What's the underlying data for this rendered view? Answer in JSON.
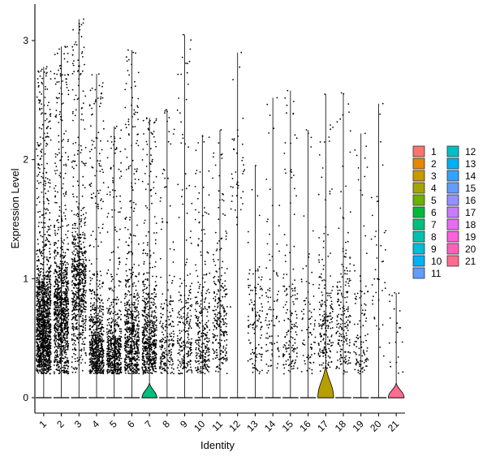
{
  "chart_data": {
    "type": "violin",
    "xlabel": "Identity",
    "ylabel": "Expression Level",
    "ylim": [
      -0.15,
      3.3
    ],
    "yticks": [
      0,
      1,
      2,
      3
    ],
    "grid": false,
    "legend_position": "right",
    "categories": [
      "1",
      "2",
      "3",
      "4",
      "5",
      "6",
      "7",
      "8",
      "9",
      "10",
      "11",
      "12",
      "13",
      "14",
      "15",
      "16",
      "17",
      "18",
      "19",
      "20",
      "21"
    ],
    "colors": [
      "#F8766D",
      "#E58700",
      "#C99800",
      "#A3A500",
      "#6BB100",
      "#00BA38",
      "#00BF7D",
      "#00C0AF",
      "#00BCD8",
      "#00B0F6",
      "#619CFF",
      "#B983FF",
      "#E76BF3",
      "#FD61D1",
      "#FF67A4",
      "#E08B00",
      "#B79F00",
      "#7CAE00",
      "#00C08B",
      "#00BFC4",
      "#FF6C91"
    ],
    "legend_colors": [
      "#F8766D",
      "#E58700",
      "#C99800",
      "#A3A500",
      "#6BB100",
      "#00BA38",
      "#00BF7D",
      "#00C0AF",
      "#00BCD8",
      "#00B0F6",
      "#619CFF",
      "#00C0C4",
      "#00B0F6",
      "#35A2FF",
      "#619CFF",
      "#9590FF",
      "#C77CFF",
      "#E76BF3",
      "#FA62DB",
      "#FF62BC",
      "#FF6C91"
    ],
    "series": [
      {
        "name": "1",
        "max": 2.78,
        "nonzero_fraction": 0.92,
        "mode": 0.6,
        "visible_zero_violin": false,
        "points": 1400
      },
      {
        "name": "2",
        "max": 2.95,
        "nonzero_fraction": 0.85,
        "mode": 0.7,
        "visible_zero_violin": false,
        "points": 1000
      },
      {
        "name": "3",
        "max": 3.18,
        "nonzero_fraction": 0.8,
        "mode": 0.9,
        "visible_zero_violin": false,
        "points": 700
      },
      {
        "name": "4",
        "max": 2.72,
        "nonzero_fraction": 0.75,
        "mode": 0.35,
        "visible_zero_violin": false,
        "points": 700
      },
      {
        "name": "5",
        "max": 2.28,
        "nonzero_fraction": 0.6,
        "mode": 0.3,
        "visible_zero_violin": false,
        "points": 550
      },
      {
        "name": "6",
        "max": 2.92,
        "nonzero_fraction": 0.7,
        "mode": 0.45,
        "visible_zero_violin": false,
        "points": 650
      },
      {
        "name": "7",
        "max": 2.35,
        "nonzero_fraction": 0.55,
        "mode": 0.45,
        "visible_zero_violin": true,
        "points": 600
      },
      {
        "name": "8",
        "max": 2.42,
        "nonzero_fraction": 0.35,
        "mode": 0.35,
        "visible_zero_violin": false,
        "points": 220
      },
      {
        "name": "9",
        "max": 3.05,
        "nonzero_fraction": 0.35,
        "mode": 0.45,
        "visible_zero_violin": false,
        "points": 230
      },
      {
        "name": "10",
        "max": 2.2,
        "nonzero_fraction": 0.45,
        "mode": 0.5,
        "visible_zero_violin": false,
        "points": 280
      },
      {
        "name": "11",
        "max": 2.25,
        "nonzero_fraction": 0.45,
        "mode": 0.65,
        "visible_zero_violin": false,
        "points": 260
      },
      {
        "name": "12",
        "max": 2.9,
        "nonzero_fraction": 0.08,
        "mode": 1.9,
        "visible_zero_violin": false,
        "points": 40
      },
      {
        "name": "13",
        "max": 1.95,
        "nonzero_fraction": 0.35,
        "mode": 0.65,
        "visible_zero_violin": false,
        "points": 120
      },
      {
        "name": "14",
        "max": 2.52,
        "nonzero_fraction": 0.3,
        "mode": 0.6,
        "visible_zero_violin": false,
        "points": 90
      },
      {
        "name": "15",
        "max": 2.58,
        "nonzero_fraction": 0.4,
        "mode": 0.6,
        "visible_zero_violin": false,
        "points": 150
      },
      {
        "name": "16",
        "max": 2.25,
        "nonzero_fraction": 0.35,
        "mode": 0.5,
        "visible_zero_violin": false,
        "points": 80
      },
      {
        "name": "17",
        "max": 2.55,
        "nonzero_fraction": 0.25,
        "mode": 0.6,
        "visible_zero_violin": true,
        "points": 200
      },
      {
        "name": "18",
        "max": 2.56,
        "nonzero_fraction": 0.45,
        "mode": 0.6,
        "visible_zero_violin": false,
        "points": 190
      },
      {
        "name": "19",
        "max": 2.22,
        "nonzero_fraction": 0.4,
        "mode": 0.45,
        "visible_zero_violin": false,
        "points": 110
      },
      {
        "name": "20",
        "max": 2.47,
        "nonzero_fraction": 0.2,
        "mode": 1.0,
        "visible_zero_violin": false,
        "points": 40
      },
      {
        "name": "21",
        "max": 0.88,
        "nonzero_fraction": 0.05,
        "mode": 0.6,
        "visible_zero_violin": true,
        "points": 20
      }
    ]
  }
}
